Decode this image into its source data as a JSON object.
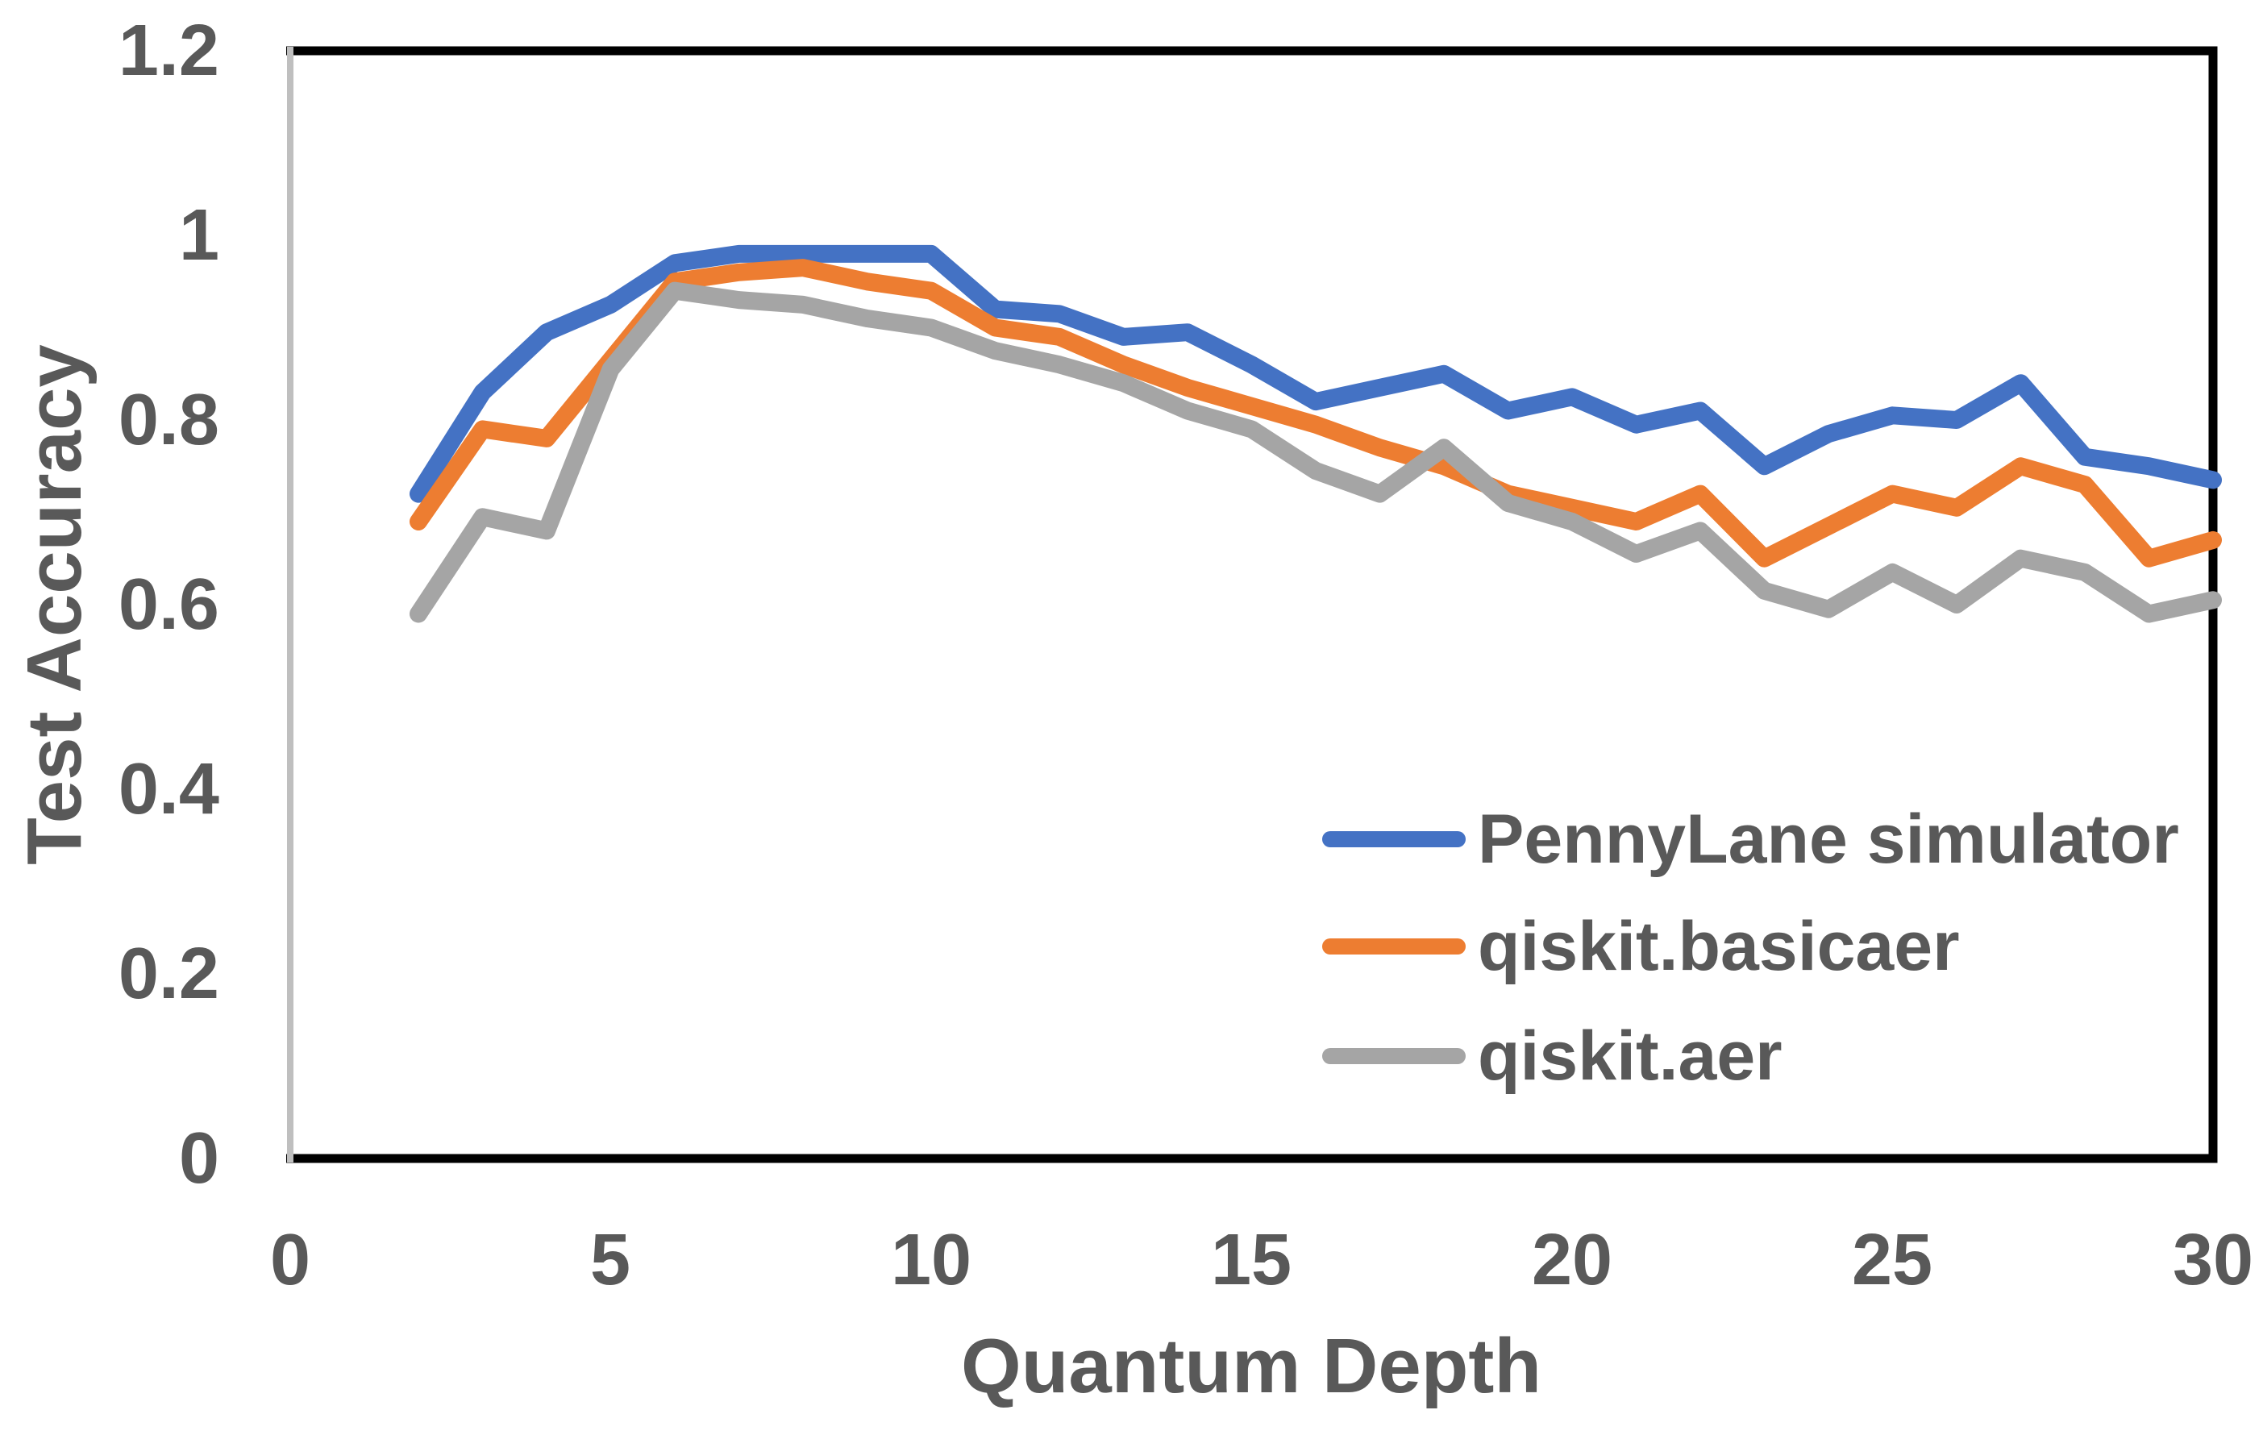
{
  "chart_data": {
    "type": "line",
    "title": "",
    "xlabel": "Quantum Depth",
    "ylabel": "Test Accuracy",
    "xlim": [
      0,
      30
    ],
    "ylim": [
      0,
      1.2
    ],
    "grid": false,
    "legend_position": "inside-bottom-right",
    "xticks": [
      "0",
      "5",
      "10",
      "15",
      "20",
      "25",
      "30"
    ],
    "yticks": [
      "1.2",
      "1",
      "0.8",
      "0.6",
      "0.4",
      "0.2",
      "0"
    ],
    "x": [
      2,
      3,
      4,
      5,
      6,
      7,
      8,
      9,
      10,
      11,
      12,
      13,
      14,
      15,
      16,
      17,
      18,
      19,
      20,
      21,
      22,
      23,
      24,
      25,
      26,
      27,
      28,
      29,
      30
    ],
    "series": [
      {
        "name": "PennyLane simulator",
        "color": "#4472C4",
        "values": [
          0.72,
          0.83,
          0.895,
          0.925,
          0.97,
          0.98,
          0.98,
          0.98,
          0.98,
          0.92,
          0.915,
          0.89,
          0.895,
          0.86,
          0.82,
          0.835,
          0.85,
          0.81,
          0.825,
          0.795,
          0.81,
          0.75,
          0.785,
          0.805,
          0.8,
          0.84,
          0.76,
          0.75,
          0.735
        ]
      },
      {
        "name": "qiskit.basicaer",
        "color": "#ED7D31",
        "values": [
          0.69,
          0.79,
          0.78,
          0.865,
          0.95,
          0.96,
          0.965,
          0.95,
          0.94,
          0.9,
          0.89,
          0.86,
          0.835,
          0.815,
          0.795,
          0.77,
          0.75,
          0.72,
          0.705,
          0.69,
          0.72,
          0.65,
          0.685,
          0.72,
          0.705,
          0.75,
          0.73,
          0.65,
          0.67
        ]
      },
      {
        "name": "qiskit.aer",
        "color": "#A5A5A5",
        "values": [
          0.59,
          0.695,
          0.68,
          0.855,
          0.94,
          0.93,
          0.925,
          0.91,
          0.9,
          0.875,
          0.86,
          0.84,
          0.81,
          0.79,
          0.745,
          0.72,
          0.77,
          0.71,
          0.69,
          0.655,
          0.68,
          0.615,
          0.595,
          0.635,
          0.6,
          0.65,
          0.635,
          0.59,
          0.605
        ]
      }
    ]
  },
  "colors": {
    "tick_text": "#595959",
    "plot_border": "#000000",
    "y_axis_line": "#BFBFBF",
    "background": "#FFFFFF"
  }
}
